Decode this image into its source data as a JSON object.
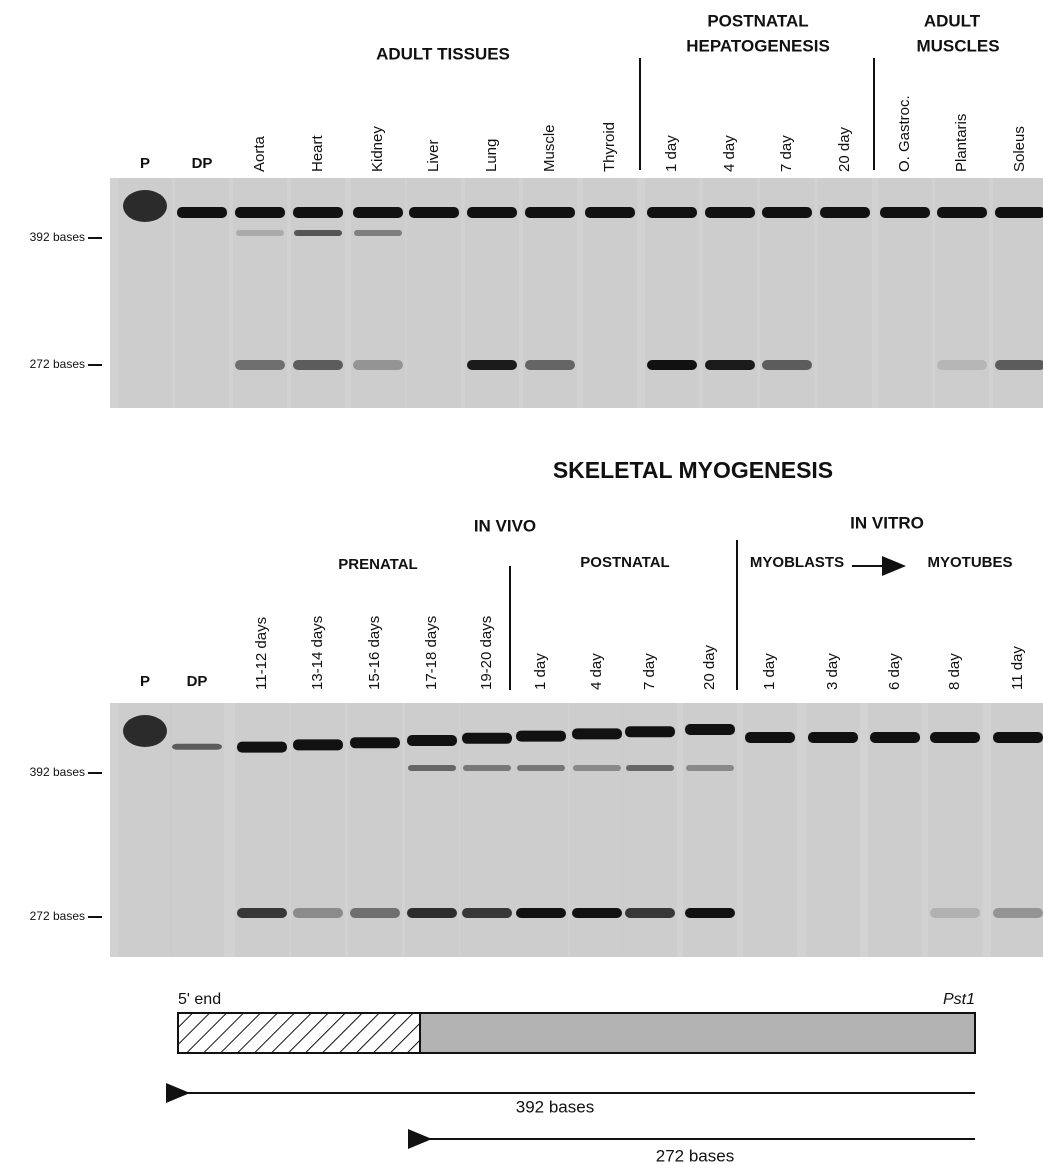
{
  "panel_top": {
    "groups": [
      [
        "ADULT TISSUES"
      ],
      [
        "POSTNATAL",
        "HEPATOGENESIS"
      ],
      [
        "ADULT",
        "MUSCLES"
      ]
    ],
    "lanes": [
      "P",
      "DP",
      "Aorta",
      "Heart",
      "Kidney",
      "Liver",
      "Lung",
      "Muscle",
      "Thyroid",
      "1 day",
      "4 day",
      "7 day",
      "20 day",
      "O. Gastroc.",
      "Plantaris",
      "Soleus"
    ],
    "markers": [
      "392 bases",
      "272 bases"
    ]
  },
  "panel_bottom": {
    "title": "SKELETAL MYOGENESIS",
    "sections": [
      "IN VIVO",
      "IN VITRO"
    ],
    "groups": [
      "PRENATAL",
      "POSTNATAL",
      "MYOBLASTS",
      "MYOTUBES"
    ],
    "lanes": [
      "P",
      "DP",
      "11-12 days",
      "13-14 days",
      "15-16 days",
      "17-18 days",
      "19-20 days",
      "1 day",
      "4 day",
      "7 day",
      "20 day",
      "1 day",
      "3 day",
      "6 day",
      "8 day",
      "11 day"
    ],
    "markers": [
      "392 bases",
      "272 bases"
    ]
  },
  "diagram": {
    "left_label": "5' end",
    "right_label": "Pst1",
    "arrows": [
      "392 bases",
      "272 bases"
    ]
  }
}
